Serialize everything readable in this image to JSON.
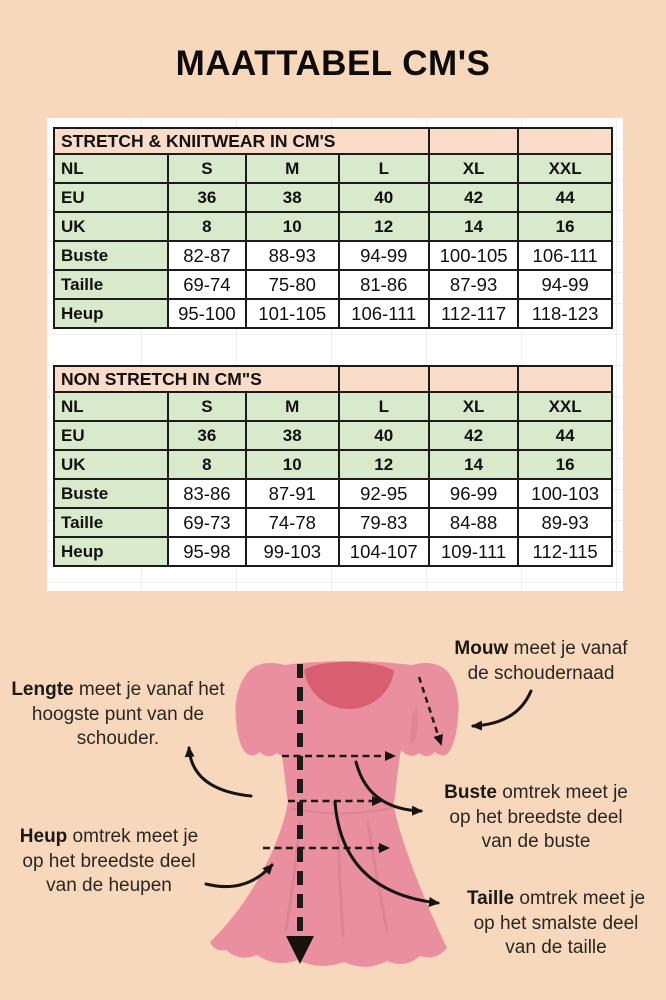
{
  "page": {
    "title": "MAATTABEL CM'S"
  },
  "colors": {
    "background": "#f8d8bc",
    "table_header": "#fbdcc8",
    "table_green": "#d9e9cc",
    "table_border": "#1b1b1b",
    "dress_pink": "#e98fa0",
    "dress_neckline": "#d95e72",
    "annotation_text": "#2b2622"
  },
  "tables": [
    {
      "title": "STRETCH & KNIITWEAR IN CM'S",
      "title_colspan": 4,
      "size_rows": [
        {
          "label": "NL",
          "values": [
            "S",
            "M",
            "L",
            "XL",
            "XXL"
          ]
        },
        {
          "label": "EU",
          "values": [
            "36",
            "38",
            "40",
            "42",
            "44"
          ]
        },
        {
          "label": "UK",
          "values": [
            "8",
            "10",
            "12",
            "14",
            "16"
          ]
        }
      ],
      "measure_rows": [
        {
          "label": "Buste",
          "values": [
            "82-87",
            "88-93",
            "94-99",
            "100-105",
            "106-111"
          ]
        },
        {
          "label": "Taille",
          "values": [
            "69-74",
            "75-80",
            "81-86",
            "87-93",
            "94-99"
          ]
        },
        {
          "label": "Heup",
          "values": [
            "95-100",
            "101-105",
            "106-111",
            "112-117",
            "118-123"
          ]
        }
      ]
    },
    {
      "title": "NON STRETCH IN CM\"S",
      "title_colspan": 3,
      "size_rows": [
        {
          "label": "NL",
          "values": [
            "S",
            "M",
            "L",
            "XL",
            "XXL"
          ]
        },
        {
          "label": "EU",
          "values": [
            "36",
            "38",
            "40",
            "42",
            "44"
          ]
        },
        {
          "label": "UK",
          "values": [
            "8",
            "10",
            "12",
            "14",
            "16"
          ]
        }
      ],
      "measure_rows": [
        {
          "label": "Buste",
          "values": [
            "83-86",
            "87-91",
            "92-95",
            "96-99",
            "100-103"
          ]
        },
        {
          "label": "Taille",
          "values": [
            "69-73",
            "74-78",
            "79-83",
            "84-88",
            "89-93"
          ]
        },
        {
          "label": "Heup",
          "values": [
            "95-98",
            "99-103",
            "104-107",
            "109-111",
            "112-115"
          ]
        }
      ]
    }
  ],
  "notes": {
    "lengte": {
      "bold": "Lengte",
      "line1_rest": " meet je vanaf het",
      "line2": "hoogste punt van de",
      "line3": "schouder."
    },
    "mouw": {
      "bold": "Mouw",
      "line1_rest": " meet je vanaf",
      "line2": "de schoudernaad"
    },
    "buste": {
      "bold": "Buste",
      "line1_rest": " omtrek meet je",
      "line2": "op het breedste deel",
      "line3": "van de buste"
    },
    "heup": {
      "bold": "Heup",
      "line1_rest": " omtrek meet je",
      "line2": "op het breedste deel",
      "line3": "van de heupen"
    },
    "taille": {
      "bold": "Taille",
      "line1_rest": " omtrek meet je",
      "line2": "op het smalste deel",
      "line3": "van de taille"
    }
  }
}
